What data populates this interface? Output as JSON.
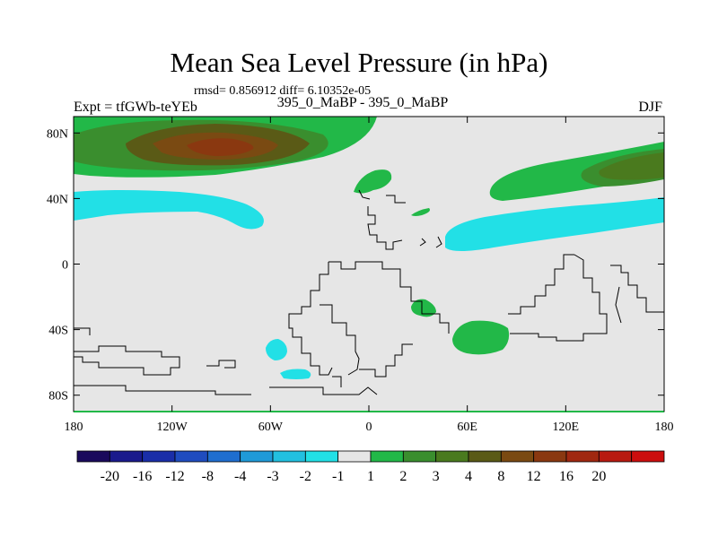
{
  "title": "Mean Sea Level Pressure (in hPa)",
  "subtitle": "rmsd= 0.856912 diff= 6.10352e-05",
  "left_label": "Expt = tfGWb-teYEb",
  "center_label": "395_0_MaBP - 395_0_MaBP",
  "right_label": "DJF",
  "colors": {
    "background_field": "#e6e6e6",
    "coastline": "#000000",
    "frame": "#000000"
  },
  "chart_data": {
    "type": "heatmap",
    "title": "Mean Sea Level Pressure (in hPa)",
    "projection": "cylindrical equidistant",
    "x_axis": {
      "range": [
        -180,
        180
      ],
      "ticks": [
        {
          "value": -180,
          "label": "180"
        },
        {
          "value": -120,
          "label": "120W"
        },
        {
          "value": -60,
          "label": "60W"
        },
        {
          "value": 0,
          "label": "0"
        },
        {
          "value": 60,
          "label": "60E"
        },
        {
          "value": 120,
          "label": "120E"
        },
        {
          "value": 180,
          "label": "180"
        }
      ]
    },
    "y_axis": {
      "range": [
        -90,
        90
      ],
      "ticks": [
        {
          "value": 80,
          "label": "80N"
        },
        {
          "value": 40,
          "label": "40N"
        },
        {
          "value": 0,
          "label": "0"
        },
        {
          "value": -40,
          "label": "40S"
        },
        {
          "value": -80,
          "label": "80S"
        }
      ]
    },
    "colorbar": {
      "colors": [
        "#1a0a5c",
        "#1a1a8c",
        "#1a2ea8",
        "#1f4cbf",
        "#1f6ecf",
        "#1f9ad8",
        "#22c0e0",
        "#22e0e6",
        "#e6e6e6",
        "#22b848",
        "#3a8e2e",
        "#4a7a1e",
        "#5a5a16",
        "#7a4a12",
        "#8a3810",
        "#a02810",
        "#b81a10",
        "#cc0e0e"
      ],
      "labels": [
        "-20",
        "-16",
        "-12",
        "-8",
        "-4",
        "-3",
        "-2",
        "-1",
        "1",
        "2",
        "3",
        "4",
        "8",
        "12",
        "16",
        "20"
      ]
    }
  }
}
